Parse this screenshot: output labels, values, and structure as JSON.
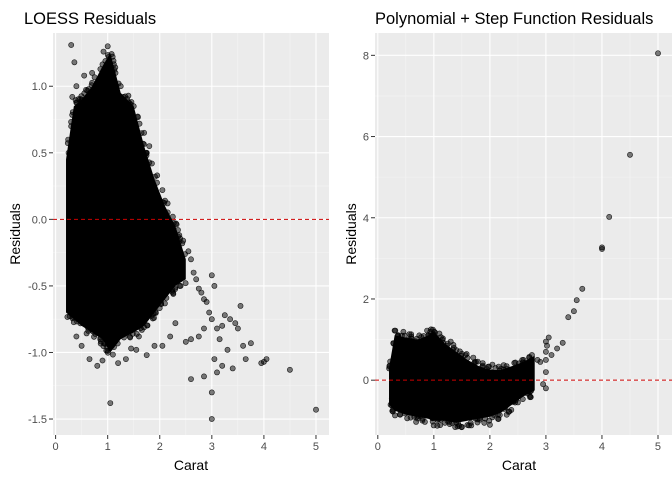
{
  "chart_data": [
    {
      "type": "scatter",
      "title": "LOESS Residuals",
      "xlabel": "Carat",
      "ylabel": "Residuals",
      "xlim": [
        -0.05,
        5.25
      ],
      "ylim": [
        -1.62,
        1.4
      ],
      "x_ticks": [
        0,
        1,
        2,
        3,
        4,
        5
      ],
      "y_ticks": [
        -1.5,
        -1.0,
        -0.5,
        0.0,
        0.5,
        1.0
      ],
      "x_tick_labels": [
        "0",
        "1",
        "2",
        "3",
        "4",
        "5"
      ],
      "y_tick_labels": [
        "-1.5",
        "-1.0",
        "-0.5",
        "0.0",
        "0.5",
        "1.0"
      ],
      "reference_line": {
        "y": 0,
        "color": "#cc0000",
        "style": "dashed"
      },
      "point_color": "#000000",
      "grid": true,
      "dense_band": [
        [
          0.2,
          -0.7,
          0.45
        ],
        [
          0.35,
          -0.75,
          0.85
        ],
        [
          0.5,
          -0.8,
          0.9
        ],
        [
          0.7,
          -0.85,
          1.0
        ],
        [
          0.9,
          -0.9,
          1.15
        ],
        [
          1.05,
          -1.0,
          1.25
        ],
        [
          1.25,
          -0.9,
          0.95
        ],
        [
          1.5,
          -0.85,
          0.85
        ],
        [
          1.7,
          -0.8,
          0.55
        ],
        [
          1.9,
          -0.7,
          0.3
        ],
        [
          2.1,
          -0.6,
          0.1
        ],
        [
          2.3,
          -0.5,
          -0.05
        ],
        [
          2.5,
          -0.45,
          -0.3
        ]
      ],
      "points": [
        [
          0.3,
          1.31
        ],
        [
          0.36,
          1.18
        ],
        [
          0.32,
          0.92
        ],
        [
          0.4,
          1.0
        ],
        [
          0.55,
          1.08
        ],
        [
          0.7,
          1.1
        ],
        [
          0.92,
          1.26
        ],
        [
          1.0,
          1.3
        ],
        [
          1.02,
          1.22
        ],
        [
          1.1,
          1.05
        ],
        [
          1.25,
          1.0
        ],
        [
          1.5,
          0.85
        ],
        [
          1.52,
          0.7
        ],
        [
          1.6,
          0.6
        ],
        [
          1.75,
          0.5
        ],
        [
          1.85,
          0.42
        ],
        [
          1.95,
          0.33
        ],
        [
          2.05,
          0.22
        ],
        [
          2.15,
          0.12
        ],
        [
          2.25,
          0.02
        ],
        [
          2.35,
          -0.08
        ],
        [
          2.45,
          -0.16
        ],
        [
          2.55,
          -0.24
        ],
        [
          2.6,
          -0.3
        ],
        [
          2.65,
          -0.4
        ],
        [
          2.7,
          -0.45
        ],
        [
          2.75,
          -0.52
        ],
        [
          2.8,
          -0.55
        ],
        [
          2.85,
          -0.6
        ],
        [
          2.9,
          -0.62
        ],
        [
          3.0,
          -0.42
        ],
        [
          3.05,
          -0.5
        ],
        [
          2.95,
          -0.7
        ],
        [
          3.0,
          -0.75
        ],
        [
          2.85,
          -0.82
        ],
        [
          2.75,
          -0.88
        ],
        [
          2.6,
          -0.9
        ],
        [
          2.5,
          -0.92
        ],
        [
          2.2,
          -0.88
        ],
        [
          2.05,
          -0.95
        ],
        [
          1.9,
          -0.95
        ],
        [
          1.75,
          -1.02
        ],
        [
          1.55,
          -0.98
        ],
        [
          1.35,
          -1.05
        ],
        [
          1.2,
          -1.08
        ],
        [
          0.9,
          -1.06
        ],
        [
          0.8,
          -1.1
        ],
        [
          0.65,
          -1.05
        ],
        [
          0.5,
          -0.95
        ],
        [
          0.4,
          -0.88
        ],
        [
          1.05,
          -1.38
        ],
        [
          1.45,
          -0.97
        ],
        [
          1.6,
          -0.88
        ],
        [
          2.3,
          -0.78
        ],
        [
          3.1,
          -0.82
        ],
        [
          3.15,
          -0.9
        ],
        [
          3.2,
          -0.8
        ],
        [
          3.25,
          -0.72
        ],
        [
          3.35,
          -0.75
        ],
        [
          3.45,
          -0.78
        ],
        [
          3.55,
          -0.65
        ],
        [
          3.5,
          -0.82
        ],
        [
          3.6,
          -0.95
        ],
        [
          3.4,
          -1.12
        ],
        [
          3.3,
          -0.98
        ],
        [
          3.2,
          -1.1
        ],
        [
          3.1,
          -1.15
        ],
        [
          3.05,
          -1.05
        ],
        [
          3.0,
          -1.3
        ],
        [
          3.0,
          -1.5
        ],
        [
          2.85,
          -1.18
        ],
        [
          2.6,
          -1.2
        ],
        [
          3.65,
          -1.05
        ],
        [
          3.75,
          -0.93
        ],
        [
          3.95,
          -1.08
        ],
        [
          4.0,
          -1.07
        ],
        [
          4.05,
          -1.05
        ],
        [
          4.5,
          -1.13
        ],
        [
          5.0,
          -1.43
        ],
        [
          0.25,
          0.5
        ],
        [
          0.28,
          -0.5
        ],
        [
          0.3,
          0.7
        ],
        [
          0.45,
          0.78
        ],
        [
          0.6,
          0.88
        ],
        [
          0.75,
          0.95
        ],
        [
          1.15,
          1.1
        ],
        [
          1.3,
          0.92
        ],
        [
          1.4,
          0.88
        ],
        [
          1.7,
          0.65
        ],
        [
          1.8,
          0.55
        ],
        [
          2.0,
          -0.6
        ],
        [
          2.4,
          -0.5
        ],
        [
          1.0,
          -0.9
        ],
        [
          0.55,
          -0.72
        ]
      ]
    },
    {
      "type": "scatter",
      "title": "Polynomial + Step Function Residuals",
      "xlabel": "Carat",
      "ylabel": "Residuals",
      "xlim": [
        -0.05,
        5.25
      ],
      "ylim": [
        -1.35,
        8.55
      ],
      "x_ticks": [
        0,
        1,
        2,
        3,
        4,
        5
      ],
      "y_ticks": [
        0,
        2,
        4,
        6,
        8
      ],
      "x_tick_labels": [
        "0",
        "1",
        "2",
        "3",
        "4",
        "5"
      ],
      "y_tick_labels": [
        "0",
        "2",
        "4",
        "6",
        "8"
      ],
      "reference_line": {
        "y": 0,
        "color": "#cc0000",
        "style": "dashed"
      },
      "point_color": "#000000",
      "grid": true,
      "dense_band": [
        [
          0.2,
          -0.6,
          0.3
        ],
        [
          0.3,
          -0.75,
          1.1
        ],
        [
          0.5,
          -0.85,
          1.05
        ],
        [
          0.7,
          -0.9,
          1.0
        ],
        [
          0.9,
          -0.95,
          1.1
        ],
        [
          1.0,
          -1.0,
          1.2
        ],
        [
          1.2,
          -1.0,
          0.9
        ],
        [
          1.4,
          -1.05,
          0.7
        ],
        [
          1.6,
          -1.0,
          0.5
        ],
        [
          1.8,
          -0.95,
          0.35
        ],
        [
          2.0,
          -0.9,
          0.25
        ],
        [
          2.2,
          -0.8,
          0.25
        ],
        [
          2.4,
          -0.6,
          0.35
        ],
        [
          2.6,
          -0.4,
          0.45
        ],
        [
          2.8,
          -0.25,
          0.6
        ]
      ],
      "points": [
        [
          0.3,
          1.22
        ],
        [
          0.35,
          1.08
        ],
        [
          0.6,
          1.02
        ],
        [
          0.95,
          1.25
        ],
        [
          1.02,
          1.18
        ],
        [
          1.1,
          1.15
        ],
        [
          1.25,
          0.9
        ],
        [
          1.3,
          0.95
        ],
        [
          1.5,
          0.65
        ],
        [
          1.75,
          0.45
        ],
        [
          2.0,
          -1.1
        ],
        [
          1.9,
          -1.05
        ],
        [
          1.5,
          -1.15
        ],
        [
          1.2,
          -1.05
        ],
        [
          0.8,
          -0.95
        ],
        [
          0.4,
          -0.85
        ],
        [
          2.3,
          -0.85
        ],
        [
          2.5,
          0.3
        ],
        [
          2.6,
          0.5
        ],
        [
          2.7,
          0.55
        ],
        [
          2.75,
          0.62
        ],
        [
          2.85,
          0.5
        ],
        [
          2.9,
          0.45
        ],
        [
          2.95,
          -0.1
        ],
        [
          3.0,
          -0.2
        ],
        [
          3.0,
          0.2
        ],
        [
          3.0,
          0.5
        ],
        [
          3.0,
          0.7
        ],
        [
          3.0,
          0.95
        ],
        [
          3.05,
          1.05
        ],
        [
          3.02,
          0.85
        ],
        [
          3.1,
          0.62
        ],
        [
          3.2,
          0.78
        ],
        [
          3.3,
          0.92
        ],
        [
          3.4,
          1.55
        ],
        [
          3.5,
          1.7
        ],
        [
          3.55,
          1.97
        ],
        [
          3.65,
          2.25
        ],
        [
          4.0,
          3.27
        ],
        [
          4.0,
          3.23
        ],
        [
          4.13,
          4.02
        ],
        [
          4.5,
          5.55
        ],
        [
          5.0,
          8.05
        ],
        [
          2.55,
          -0.3
        ],
        [
          2.45,
          -0.55
        ],
        [
          2.2,
          0.15
        ],
        [
          2.1,
          0.3
        ],
        [
          1.6,
          0.55
        ],
        [
          0.25,
          -0.45
        ],
        [
          0.28,
          0.9
        ]
      ]
    }
  ]
}
